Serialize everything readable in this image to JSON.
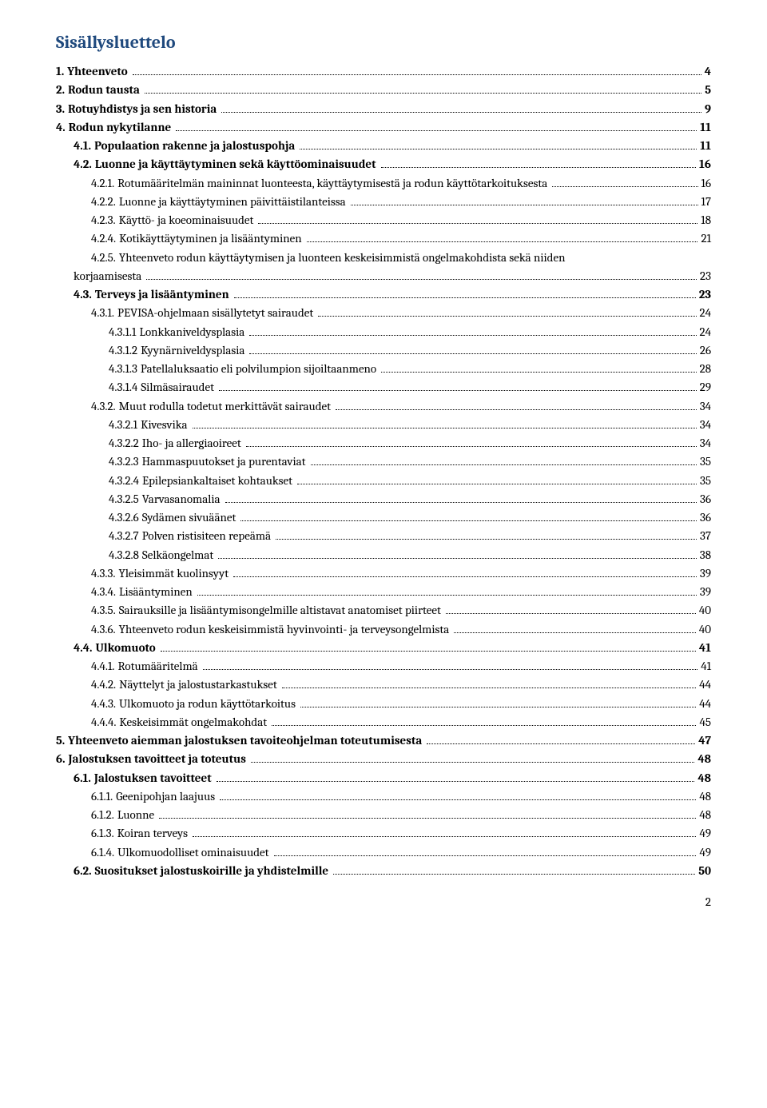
{
  "title": "Sisällysluettelo",
  "page_number": "2",
  "colors": {
    "title_color": "#1f497d",
    "text_color": "#000000",
    "background": "#ffffff"
  },
  "typography": {
    "title_fontsize": 22,
    "body_fontsize": 15,
    "font_family": "Cambria"
  },
  "entries": [
    {
      "level": 0,
      "bold": true,
      "num": "1.",
      "text": "Yhteenveto",
      "page": "4"
    },
    {
      "level": 0,
      "bold": true,
      "num": "2.",
      "text": "Rodun tausta",
      "page": "5"
    },
    {
      "level": 0,
      "bold": true,
      "num": "3.",
      "text": "Rotuyhdistys ja sen historia",
      "page": "9"
    },
    {
      "level": 0,
      "bold": true,
      "num": "4.",
      "text": "Rodun nykytilanne",
      "page": "11"
    },
    {
      "level": 1,
      "bold": true,
      "num": "4.1.",
      "text": "Populaation rakenne ja jalostuspohja",
      "page": "11"
    },
    {
      "level": 1,
      "bold": true,
      "num": "4.2.",
      "text": "Luonne ja käyttäytyminen sekä käyttöominaisuudet",
      "page": "16"
    },
    {
      "level": 2,
      "bold": false,
      "num": "4.2.1.",
      "text": "Rotumääritelmän maininnat luonteesta, käyttäytymisestä ja rodun käyttötarkoituksesta",
      "page": "16"
    },
    {
      "level": 2,
      "bold": false,
      "num": "4.2.2.",
      "text": "Luonne ja käyttäytyminen päivittäistilanteissa",
      "page": "17"
    },
    {
      "level": 2,
      "bold": false,
      "num": "4.2.3.",
      "text": "Käyttö- ja koeominaisuudet",
      "page": "18"
    },
    {
      "level": 2,
      "bold": false,
      "num": "4.2.4.",
      "text": "Kotikäyttäytyminen ja lisääntyminen",
      "page": "21"
    },
    {
      "level": 2,
      "bold": false,
      "num": "4.2.5.",
      "text": "Yhteenveto rodun käyttäytymisen ja luonteen keskeisimmistä ongelmakohdista sekä niiden",
      "page": null,
      "cont": "korjaamisesta",
      "cont_page": "23"
    },
    {
      "level": 1,
      "bold": true,
      "num": "4.3.",
      "text": "Terveys ja lisääntyminen",
      "page": "23"
    },
    {
      "level": 2,
      "bold": false,
      "num": "4.3.1.",
      "text": "PEVISA-ohjelmaan sisällytetyt sairaudet",
      "page": "24"
    },
    {
      "level": 3,
      "bold": false,
      "num": "4.3.1.1",
      "text": "Lonkkaniveldysplasia",
      "page": "24"
    },
    {
      "level": 3,
      "bold": false,
      "num": "4.3.1.2",
      "text": "Kyynärniveldysplasia",
      "page": "26"
    },
    {
      "level": 3,
      "bold": false,
      "num": "4.3.1.3",
      "text": "Patellaluksaatio eli polvilumpion sijoiltaanmeno",
      "page": "28"
    },
    {
      "level": 3,
      "bold": false,
      "num": "4.3.1.4",
      "text": "Silmäsairaudet",
      "page": "29"
    },
    {
      "level": 2,
      "bold": false,
      "num": "4.3.2.",
      "text": "Muut rodulla todetut merkittävät sairaudet",
      "page": "34"
    },
    {
      "level": 3,
      "bold": false,
      "num": "4.3.2.1",
      "text": "Kivesvika",
      "page": "34"
    },
    {
      "level": 3,
      "bold": false,
      "num": "4.3.2.2",
      "text": "Iho- ja allergiaoireet",
      "page": "34"
    },
    {
      "level": 3,
      "bold": false,
      "num": "4.3.2.3",
      "text": "Hammaspuutokset ja purentaviat",
      "page": "35"
    },
    {
      "level": 3,
      "bold": false,
      "num": "4.3.2.4",
      "text": "Epilepsiankaltaiset kohtaukset",
      "page": "35"
    },
    {
      "level": 3,
      "bold": false,
      "num": "4.3.2.5",
      "text": "Varvasanomalia",
      "page": "36"
    },
    {
      "level": 3,
      "bold": false,
      "num": "4.3.2.6",
      "text": "Sydämen sivuäänet",
      "page": "36"
    },
    {
      "level": 3,
      "bold": false,
      "num": "4.3.2.7",
      "text": "Polven ristisiteen repeämä",
      "page": "37"
    },
    {
      "level": 3,
      "bold": false,
      "num": "4.3.2.8",
      "text": "Selkäongelmat",
      "page": "38"
    },
    {
      "level": 2,
      "bold": false,
      "num": "4.3.3.",
      "text": "Yleisimmät kuolinsyyt",
      "page": "39"
    },
    {
      "level": 2,
      "bold": false,
      "num": "4.3.4.",
      "text": "Lisääntyminen",
      "page": "39"
    },
    {
      "level": 2,
      "bold": false,
      "num": "4.3.5.",
      "text": "Sairauksille ja lisääntymisongelmille altistavat anatomiset piirteet",
      "page": "40"
    },
    {
      "level": 2,
      "bold": false,
      "num": "4.3.6.",
      "text": "Yhteenveto rodun keskeisimmistä hyvinvointi- ja terveysongelmista",
      "page": "40"
    },
    {
      "level": 1,
      "bold": true,
      "num": "4.4.",
      "text": "Ulkomuoto",
      "page": "41"
    },
    {
      "level": 2,
      "bold": false,
      "num": "4.4.1.",
      "text": "Rotumääritelmä",
      "page": "41"
    },
    {
      "level": 2,
      "bold": false,
      "num": "4.4.2.",
      "text": "Näyttelyt ja jalostustarkastukset",
      "page": "44"
    },
    {
      "level": 2,
      "bold": false,
      "num": "4.4.3.",
      "text": "Ulkomuoto ja rodun käyttötarkoitus",
      "page": "44"
    },
    {
      "level": 2,
      "bold": false,
      "num": "4.4.4.",
      "text": "Keskeisimmät ongelmakohdat",
      "page": "45"
    },
    {
      "level": 0,
      "bold": true,
      "num": "5.",
      "text": "Yhteenveto aiemman jalostuksen tavoiteohjelman toteutumisesta",
      "page": "47"
    },
    {
      "level": 0,
      "bold": true,
      "num": "6.",
      "text": "Jalostuksen tavoitteet ja toteutus",
      "page": "48"
    },
    {
      "level": 1,
      "bold": true,
      "num": "6.1.",
      "text": "Jalostuksen tavoitteet",
      "page": "48"
    },
    {
      "level": 2,
      "bold": false,
      "num": "6.1.1.",
      "text": "Geenipohjan laajuus",
      "page": "48"
    },
    {
      "level": 2,
      "bold": false,
      "num": "6.1.2.",
      "text": "Luonne",
      "page": "48"
    },
    {
      "level": 2,
      "bold": false,
      "num": "6.1.3.",
      "text": "Koiran terveys",
      "page": "49"
    },
    {
      "level": 2,
      "bold": false,
      "num": "6.1.4.",
      "text": "Ulkomuodolliset ominaisuudet",
      "page": "49"
    },
    {
      "level": 1,
      "bold": true,
      "num": "6.2.",
      "text": "Suositukset jalostuskoirille ja yhdistelmille",
      "page": "50"
    }
  ]
}
